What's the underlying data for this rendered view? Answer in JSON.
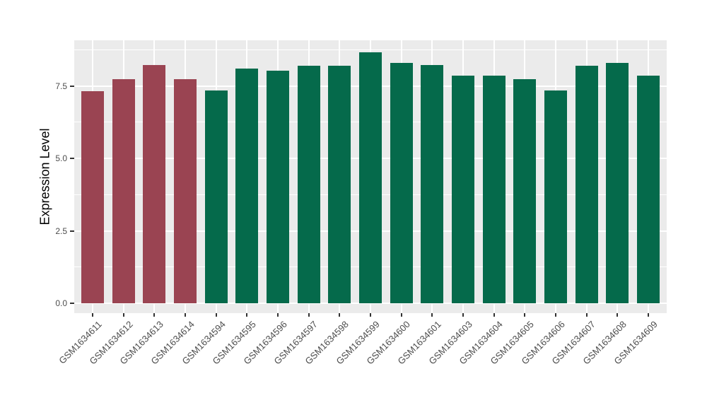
{
  "chart_data": {
    "type": "bar",
    "title": "",
    "xlabel": "",
    "ylabel": "Expression Level",
    "categories": [
      "GSM1634611",
      "GSM1634612",
      "GSM1634613",
      "GSM1634614",
      "GSM1634594",
      "GSM1634595",
      "GSM1634596",
      "GSM1634597",
      "GSM1634598",
      "GSM1634599",
      "GSM1634600",
      "GSM1634601",
      "GSM1634603",
      "GSM1634604",
      "GSM1634605",
      "GSM1634606",
      "GSM1634607",
      "GSM1634608",
      "GSM1634609"
    ],
    "values": [
      7.32,
      7.73,
      8.23,
      7.73,
      7.35,
      8.1,
      8.03,
      8.2,
      8.2,
      8.67,
      8.3,
      8.23,
      7.86,
      7.86,
      7.74,
      7.35,
      8.2,
      8.3,
      7.87
    ],
    "bar_groups": [
      "maroon",
      "maroon",
      "maroon",
      "maroon",
      "green",
      "green",
      "green",
      "green",
      "green",
      "green",
      "green",
      "green",
      "green",
      "green",
      "green",
      "green",
      "green",
      "green",
      "green"
    ],
    "group_colors": {
      "maroon": "#9A4452",
      "green": "#056A4B"
    },
    "ytick_labels": [
      "0.0",
      "2.5",
      "5.0",
      "7.5"
    ],
    "yticks": [
      0.0,
      2.5,
      5.0,
      7.5
    ],
    "minor_yticks": [
      1.25,
      3.75,
      6.25,
      8.75
    ],
    "ylim": [
      0,
      9.1
    ],
    "grid": "major-and-minor, white on gray panel",
    "legend": "none",
    "colors": {
      "panel_background": "#EBEBEB",
      "gridline": "#FFFFFF",
      "tick_label": "#4D4D4D",
      "axis_title": "#000000",
      "tick_mark": "#333333"
    }
  }
}
